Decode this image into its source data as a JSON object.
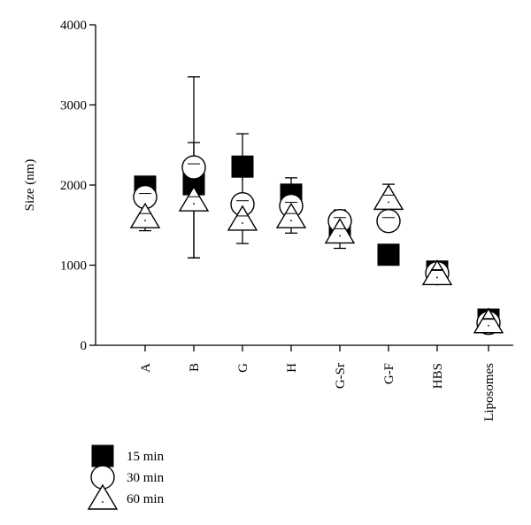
{
  "chart_data": {
    "type": "scatter",
    "ylabel": "Size (nm)",
    "xlabel": "",
    "ylim": [
      0,
      4000
    ],
    "yticks": [
      "0",
      "1000",
      "2000",
      "3000",
      "4000"
    ],
    "categories": [
      "A",
      "B",
      "G",
      "H",
      "G-Sr",
      "G-F",
      "HBS",
      "Liposomes"
    ],
    "grid": false,
    "legend_position": "bottom-left",
    "series": [
      {
        "name": "15 min",
        "marker": "filled-square",
        "values": [
          1980,
          2010,
          2230,
          1880,
          1470,
          1130,
          920,
          320
        ],
        "errors": [
          null,
          null,
          410,
          210,
          null,
          null,
          null,
          null
        ]
      },
      {
        "name": "30 min",
        "marker": "open-circle",
        "values": [
          1850,
          2220,
          1760,
          1740,
          1550,
          1550,
          900,
          280
        ],
        "errors": [
          200,
          1130,
          null,
          null,
          140,
          110,
          120,
          80
        ]
      },
      {
        "name": "60 min",
        "marker": "open-triangle",
        "values": [
          1600,
          1810,
          1570,
          1600,
          1410,
          1830,
          890,
          290
        ],
        "errors": [
          170,
          720,
          300,
          200,
          200,
          180,
          120,
          100
        ]
      }
    ]
  }
}
